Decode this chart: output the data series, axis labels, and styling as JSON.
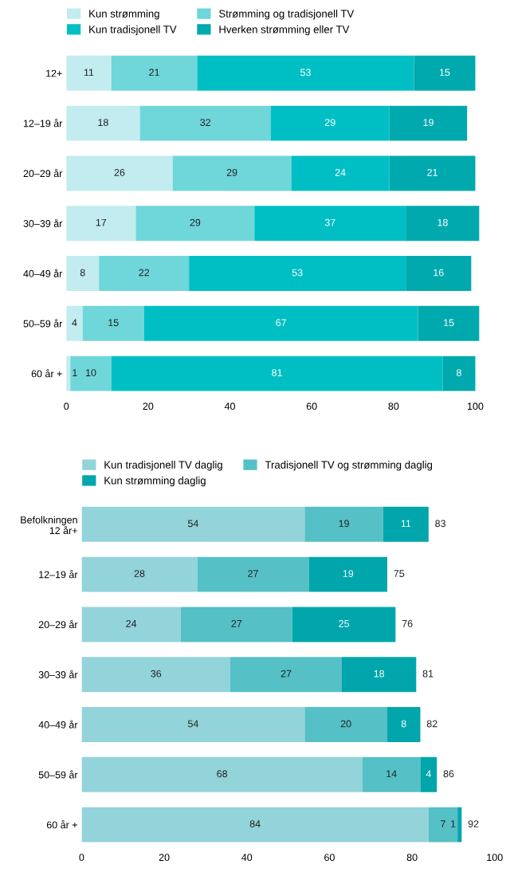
{
  "chart_data": [
    {
      "type": "bar",
      "orientation": "horizontal",
      "stacked": true,
      "data_labels": true,
      "legend": "top",
      "grid": false,
      "categories": [
        "12+",
        "12–19 år",
        "20–29 år",
        "30–39 år",
        "40–49 år",
        "50–59 år",
        "60 år +"
      ],
      "series": [
        {
          "name": "Kun strømming",
          "color": "#c2ecef",
          "values": [
            11,
            18,
            26,
            17,
            8,
            4,
            1
          ]
        },
        {
          "name": "Strømming og tradisjonell TV",
          "color": "#6fd6da",
          "values": [
            21,
            32,
            29,
            29,
            22,
            15,
            10
          ]
        },
        {
          "name": "Kun tradisjonell TV",
          "color": "#00bfc4",
          "values": [
            53,
            29,
            24,
            37,
            53,
            67,
            81
          ]
        },
        {
          "name": "Hverken strømming eller TV",
          "color": "#00a9ad",
          "values": [
            15,
            19,
            21,
            18,
            16,
            15,
            8
          ]
        }
      ],
      "xlim": [
        0,
        101
      ],
      "xticks": [
        0,
        20,
        40,
        60,
        80,
        100
      ]
    },
    {
      "type": "bar",
      "orientation": "horizontal",
      "stacked": true,
      "data_labels": true,
      "legend": "top",
      "grid": false,
      "categories": [
        "Befolkningen\n12 år+",
        "12–19 år",
        "20–29 år",
        "30–39 år",
        "40–49 år",
        "50–59 år",
        "60 år +"
      ],
      "series": [
        {
          "name": "Kun tradisjonell TV daglig",
          "color": "#93d3da",
          "values": [
            54,
            28,
            24,
            36,
            54,
            68,
            84
          ]
        },
        {
          "name": "Tradisjonell TV og strømming daglig",
          "color": "#55c0c6",
          "values": [
            19,
            27,
            27,
            27,
            20,
            14,
            7
          ]
        },
        {
          "name": "Kun strømming daglig",
          "color": "#00a6ab",
          "values": [
            11,
            19,
            25,
            18,
            8,
            4,
            1
          ]
        }
      ],
      "totals": [
        "83",
        "75",
        "76",
        "81",
        "82",
        "86",
        "92"
      ],
      "xlim": [
        0,
        100
      ],
      "xticks": [
        0,
        20,
        40,
        60,
        80,
        100
      ]
    }
  ]
}
